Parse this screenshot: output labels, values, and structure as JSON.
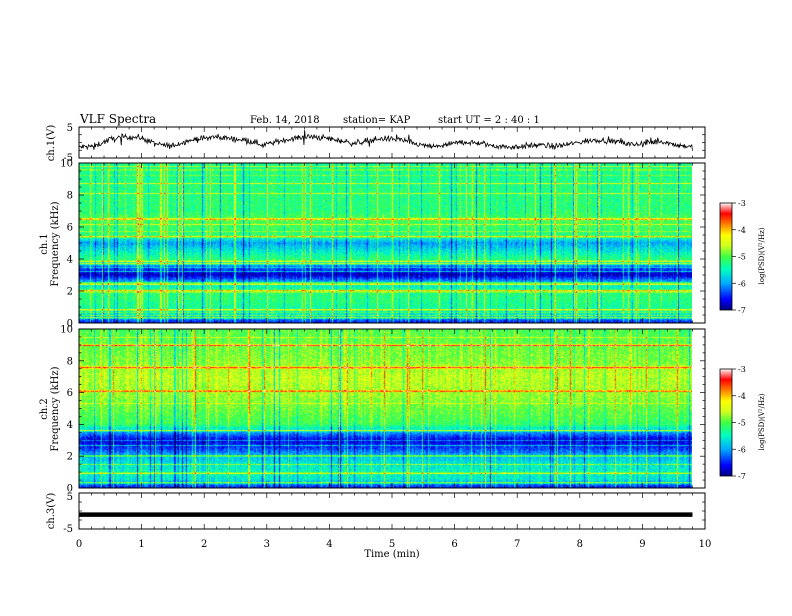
{
  "header": {
    "title": "VLF Spectra",
    "date": "Feb. 14, 2018",
    "station": "station= KAP",
    "start": "start  UT =   2 : 40 : 1"
  },
  "colors": {
    "background": "#ffffff",
    "axis": "#000000",
    "trace": "#000000"
  },
  "chart_data": [
    {
      "type": "line",
      "id": "ch1-waveform",
      "ylabel": "ch.1(V)",
      "xlim": [
        0,
        10
      ],
      "ylim": [
        -5,
        5
      ],
      "yticks": [
        "5",
        "-5"
      ],
      "x_end": 9.8,
      "y_approx": [
        -1.5,
        -1.2,
        1.0,
        1.8,
        1.6,
        -0.5,
        -1.2,
        0.5,
        1.3,
        1.8,
        1.2,
        0.8,
        -0.8,
        0.3,
        1.4,
        1.8,
        1.5,
        0.6,
        -0.3,
        0.8,
        1.3,
        0.9,
        -0.6,
        -1.4,
        -0.8,
        0.2,
        -0.2,
        -1.0,
        -1.5,
        -1.2,
        -0.8,
        -1.3,
        -0.5,
        0.4,
        0.9,
        0.3,
        -0.7,
        -0.2,
        0.4,
        -0.8,
        -1.5
      ]
    },
    {
      "type": "heatmap",
      "id": "ch1-spectrogram",
      "ylabel": "ch.1\nFrequency (kHz)",
      "xlim": [
        0,
        10
      ],
      "ylim": [
        0,
        10
      ],
      "x_end": 9.8,
      "yticks": [
        "0",
        "2",
        "4",
        "6",
        "8",
        "10"
      ],
      "colorbar": {
        "label": "log(PSD)(V²/Hz)",
        "range": [
          -7,
          -3
        ],
        "ticks": [
          "-3",
          "-4",
          "-5",
          "-6",
          "-7"
        ],
        "colors": [
          "#00007f",
          "#0000ff",
          "#00aaff",
          "#00ffc0",
          "#40ff40",
          "#d0ff20",
          "#ffff00",
          "#ff8000",
          "#ff0000",
          "#ff9090",
          "#ffffff"
        ]
      },
      "base_levels_by_frequency": [
        [
          0.0,
          -6.5
        ],
        [
          0.5,
          -5.6
        ],
        [
          1.0,
          -5.3
        ],
        [
          1.5,
          -5.2
        ],
        [
          2.0,
          -5.2
        ],
        [
          2.5,
          -5.8
        ],
        [
          3.0,
          -6.8
        ],
        [
          3.5,
          -6.2
        ],
        [
          4.0,
          -5.2
        ],
        [
          4.5,
          -5.6
        ],
        [
          5.0,
          -6.0
        ],
        [
          5.5,
          -5.2
        ],
        [
          6.0,
          -5.1
        ],
        [
          6.5,
          -5.0
        ],
        [
          7.0,
          -5.2
        ],
        [
          8.0,
          -5.2
        ],
        [
          9.0,
          -5.25
        ],
        [
          10.0,
          -5.3
        ]
      ],
      "lines_khz": [
        0.3,
        0.8,
        2.0,
        2.4,
        3.7,
        3.85,
        5.4,
        6.5
      ]
    },
    {
      "type": "heatmap",
      "id": "ch2-spectrogram",
      "ylabel": "ch.2\nFrequency (kHz)",
      "xlim": [
        0,
        10
      ],
      "ylim": [
        0,
        10
      ],
      "x_end": 9.8,
      "yticks": [
        "0",
        "2",
        "4",
        "6",
        "8",
        "10"
      ],
      "colorbar": {
        "label": "log(PSD)(V²/Hz)",
        "range": [
          -7,
          -3
        ],
        "ticks": [
          "-3",
          "-4",
          "-5",
          "-6",
          "-7"
        ],
        "colors": [
          "#00007f",
          "#0000ff",
          "#00aaff",
          "#00ffc0",
          "#40ff40",
          "#d0ff20",
          "#ffff00",
          "#ff8000",
          "#ff0000",
          "#ff9090",
          "#ffffff"
        ]
      },
      "base_levels_by_frequency": [
        [
          0.0,
          -6.5
        ],
        [
          0.5,
          -5.6
        ],
        [
          1.0,
          -5.5
        ],
        [
          1.5,
          -5.6
        ],
        [
          2.0,
          -5.9
        ],
        [
          2.5,
          -6.4
        ],
        [
          3.0,
          -6.7
        ],
        [
          3.5,
          -6.0
        ],
        [
          4.0,
          -5.1
        ],
        [
          5.0,
          -4.9
        ],
        [
          6.0,
          -4.7
        ],
        [
          7.0,
          -4.6
        ],
        [
          8.0,
          -4.8
        ],
        [
          9.0,
          -4.9
        ],
        [
          10.0,
          -5.0
        ]
      ],
      "lines_khz": [
        0.3,
        0.9,
        2.0,
        3.6,
        6.1,
        7.6,
        9.0
      ]
    },
    {
      "type": "line",
      "id": "ch3-waveform",
      "ylabel": "ch.3(V)",
      "xlim": [
        0,
        10
      ],
      "ylim": [
        -5,
        5
      ],
      "yticks": [
        "5",
        "-5"
      ],
      "x_end": 9.8,
      "y_approx": [
        -1.0,
        -1.0
      ]
    }
  ],
  "xaxis": {
    "label": "Time (min)",
    "ticks": [
      "0",
      "1",
      "2",
      "3",
      "4",
      "5",
      "6",
      "7",
      "8",
      "9",
      "10"
    ]
  }
}
